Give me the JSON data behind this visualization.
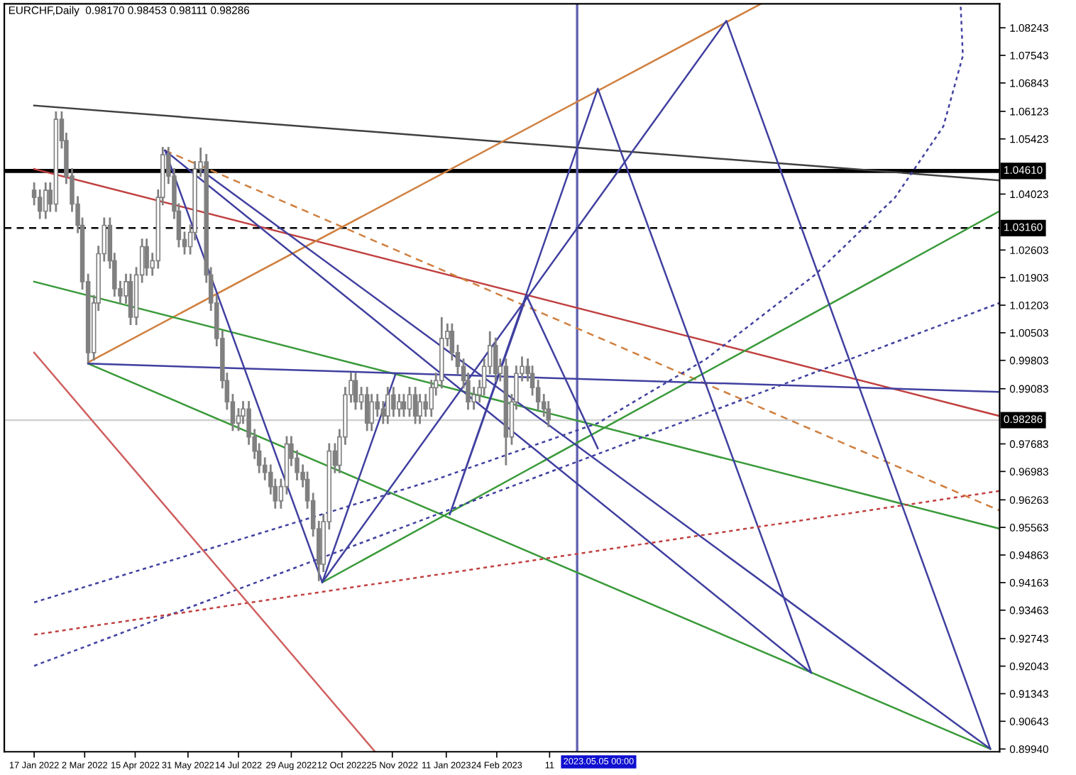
{
  "chart_data": {
    "type": "candlestick",
    "title": "EURCHF,Daily  0.98170 0.98453 0.98111 0.98286",
    "color": "#808080",
    "x": [
      "2022-01-17",
      "2022-01-22",
      "2022-01-27",
      "2022-01-31",
      "2022-02-05",
      "2022-02-10",
      "2022-02-14",
      "2022-02-19",
      "2022-02-24",
      "2022-02-28",
      "2022-03-05",
      "2022-03-10",
      "2022-03-14",
      "2022-03-19",
      "2022-03-24",
      "2022-03-28",
      "2022-04-02",
      "2022-04-07",
      "2022-04-11",
      "2022-04-16",
      "2022-04-21",
      "2022-04-25",
      "2022-04-30",
      "2022-05-05",
      "2022-05-09",
      "2022-05-14",
      "2022-05-19",
      "2022-05-23",
      "2022-05-28",
      "2022-06-02",
      "2022-06-06",
      "2022-06-11",
      "2022-06-16",
      "2022-06-20",
      "2022-06-25",
      "2022-06-30",
      "2022-07-04",
      "2022-07-09",
      "2022-07-14",
      "2022-07-18",
      "2022-07-23",
      "2022-07-28",
      "2022-08-01",
      "2022-08-06",
      "2022-08-11",
      "2022-08-15",
      "2022-08-20",
      "2022-08-25",
      "2022-08-29",
      "2022-09-03",
      "2022-09-08",
      "2022-09-12",
      "2022-09-17",
      "2022-09-22",
      "2022-09-26",
      "2022-10-01",
      "2022-10-06",
      "2022-10-10",
      "2022-10-15",
      "2022-10-20",
      "2022-10-24",
      "2022-10-29",
      "2022-11-03",
      "2022-11-07",
      "2022-11-12",
      "2022-11-17",
      "2022-11-21",
      "2022-11-26",
      "2022-12-01",
      "2022-12-05",
      "2022-12-10",
      "2022-12-15",
      "2022-12-19",
      "2022-12-24",
      "2022-12-29",
      "2023-01-02",
      "2023-01-07",
      "2023-01-12",
      "2023-01-16",
      "2023-01-21",
      "2023-01-26",
      "2023-01-30",
      "2023-02-04",
      "2023-02-09",
      "2023-02-13",
      "2023-02-18",
      "2023-02-23",
      "2023-02-27",
      "2023-03-04",
      "2023-03-09",
      "2023-03-13",
      "2023-03-18",
      "2023-03-23",
      "2023-03-27",
      "2023-04-01",
      "2023-04-06",
      "2023-04-10"
    ],
    "ohlc": [
      [
        1.0412,
        1.0432,
        1.0374,
        1.0394
      ],
      [
        1.0394,
        1.0414,
        1.0339,
        1.0359
      ],
      [
        1.0359,
        1.0432,
        1.0339,
        1.0412
      ],
      [
        1.0412,
        1.0432,
        1.0357,
        1.0377
      ],
      [
        1.0377,
        1.0612,
        1.0357,
        1.0592
      ],
      [
        1.0592,
        1.0612,
        1.0518,
        1.0538
      ],
      [
        1.0538,
        1.0558,
        1.0428,
        1.0448
      ],
      [
        1.0448,
        1.0468,
        1.0357,
        1.0377
      ],
      [
        1.0377,
        1.0397,
        1.0303,
        1.0323
      ],
      [
        1.0323,
        1.0343,
        1.016,
        1.018
      ],
      [
        1.018,
        1.02,
        0.9975,
        1.0
      ],
      [
        1.0,
        1.0146,
        0.998,
        1.0126
      ],
      [
        1.0126,
        1.0271,
        1.0106,
        1.0251
      ],
      [
        1.0251,
        1.0343,
        1.0231,
        1.0323
      ],
      [
        1.0323,
        1.0343,
        1.0213,
        1.0233
      ],
      [
        1.0233,
        1.0253,
        1.0142,
        1.0162
      ],
      [
        1.0162,
        1.0182,
        1.0124,
        1.0144
      ],
      [
        1.0144,
        1.02,
        1.0124,
        1.018
      ],
      [
        1.018,
        1.02,
        1.007,
        1.009
      ],
      [
        1.009,
        1.0217,
        1.007,
        1.0197
      ],
      [
        1.0197,
        1.0289,
        1.0177,
        1.0269
      ],
      [
        1.0269,
        1.0289,
        1.0195,
        1.0215
      ],
      [
        1.0215,
        1.0253,
        1.0195,
        1.0233
      ],
      [
        1.0233,
        1.0414,
        1.0213,
        1.0394
      ],
      [
        1.0394,
        1.0522,
        1.0374,
        1.0502
      ],
      [
        1.0502,
        1.0522,
        1.0428,
        1.0448
      ],
      [
        1.0448,
        1.0468,
        1.0339,
        1.0359
      ],
      [
        1.0359,
        1.0379,
        1.0267,
        1.0287
      ],
      [
        1.0287,
        1.0307,
        1.0249,
        1.0269
      ],
      [
        1.0269,
        1.0325,
        1.0249,
        1.0305
      ],
      [
        1.0305,
        1.0486,
        1.0285,
        1.0466
      ],
      [
        1.0466,
        1.052,
        1.0446,
        1.0484
      ],
      [
        1.0484,
        1.0504,
        1.0177,
        1.0197
      ],
      [
        1.0197,
        1.0217,
        1.0106,
        1.0126
      ],
      [
        1.0126,
        1.0146,
        1.0016,
        1.0036
      ],
      [
        1.0036,
        1.0056,
        0.9909,
        0.9929
      ],
      [
        0.9929,
        0.9949,
        0.9855,
        0.9875
      ],
      [
        0.9875,
        0.9895,
        0.9801,
        0.9821
      ],
      [
        0.9821,
        0.9859,
        0.9801,
        0.9839
      ],
      [
        0.9839,
        0.9877,
        0.9819,
        0.9857
      ],
      [
        0.9857,
        0.9877,
        0.9766,
        0.9786
      ],
      [
        0.9786,
        0.9806,
        0.973,
        0.975
      ],
      [
        0.975,
        0.977,
        0.9694,
        0.9714
      ],
      [
        0.9714,
        0.9734,
        0.9676,
        0.9696
      ],
      [
        0.9696,
        0.9716,
        0.964,
        0.966
      ],
      [
        0.966,
        0.968,
        0.9604,
        0.9624
      ],
      [
        0.9624,
        0.968,
        0.9604,
        0.966
      ],
      [
        0.966,
        0.9788,
        0.964,
        0.9768
      ],
      [
        0.9768,
        0.9788,
        0.9712,
        0.9732
      ],
      [
        0.9732,
        0.9752,
        0.9676,
        0.9696
      ],
      [
        0.9696,
        0.9716,
        0.9658,
        0.9678
      ],
      [
        0.9678,
        0.9698,
        0.9604,
        0.9624
      ],
      [
        0.9624,
        0.9644,
        0.9533,
        0.9553
      ],
      [
        0.9553,
        0.9573,
        0.942,
        0.9463
      ],
      [
        0.9463,
        0.9591,
        0.9443,
        0.9571
      ],
      [
        0.9571,
        0.977,
        0.9551,
        0.975
      ],
      [
        0.975,
        0.977,
        0.9694,
        0.9714
      ],
      [
        0.9714,
        0.9806,
        0.9694,
        0.9786
      ],
      [
        0.9786,
        0.9913,
        0.9766,
        0.9893
      ],
      [
        0.9893,
        0.9949,
        0.9873,
        0.9929
      ],
      [
        0.9929,
        0.9949,
        0.9855,
        0.9875
      ],
      [
        0.9875,
        0.9913,
        0.9855,
        0.9893
      ],
      [
        0.9893,
        0.9913,
        0.9801,
        0.9821
      ],
      [
        0.9821,
        0.9895,
        0.9801,
        0.9875
      ],
      [
        0.9875,
        0.9895,
        0.9837,
        0.9857
      ],
      [
        0.9857,
        0.9877,
        0.9819,
        0.9839
      ],
      [
        0.9839,
        0.9913,
        0.9819,
        0.9893
      ],
      [
        0.9893,
        0.9913,
        0.9837,
        0.9857
      ],
      [
        0.9857,
        0.9895,
        0.9837,
        0.9875
      ],
      [
        0.9875,
        0.9895,
        0.9837,
        0.9857
      ],
      [
        0.9857,
        0.9913,
        0.9837,
        0.9893
      ],
      [
        0.9893,
        0.9913,
        0.9819,
        0.9839
      ],
      [
        0.9839,
        0.9895,
        0.9819,
        0.9875
      ],
      [
        0.9875,
        0.9895,
        0.9837,
        0.9857
      ],
      [
        0.9857,
        0.9931,
        0.9837,
        0.9911
      ],
      [
        0.9911,
        0.9949,
        0.9891,
        0.9929
      ],
      [
        0.9929,
        1.009,
        0.9909,
        1.0036
      ],
      [
        1.0036,
        1.0074,
        1.0016,
        1.0054
      ],
      [
        1.0054,
        1.0074,
        0.998,
        1.0
      ],
      [
        1.0,
        1.002,
        0.9945,
        0.9965
      ],
      [
        0.9965,
        0.9985,
        0.9909,
        0.9929
      ],
      [
        0.9929,
        0.9949,
        0.9855,
        0.9875
      ],
      [
        0.9875,
        0.9913,
        0.9855,
        0.9893
      ],
      [
        0.9893,
        0.9931,
        0.9873,
        0.9911
      ],
      [
        0.9911,
        0.9985,
        0.9891,
        0.9965
      ],
      [
        0.9965,
        1.0054,
        0.9945,
        1.0018
      ],
      [
        1.0018,
        1.0038,
        0.9927,
        0.9947
      ],
      [
        0.9947,
        0.9985,
        0.9927,
        0.9965
      ],
      [
        0.9965,
        0.9985,
        0.9714,
        0.9786
      ],
      [
        0.9786,
        0.9895,
        0.9766,
        0.9875
      ],
      [
        0.9875,
        0.9967,
        0.9855,
        0.9947
      ],
      [
        0.9947,
        0.999,
        0.9927,
        0.9965
      ],
      [
        0.9965,
        0.9985,
        0.9927,
        0.9947
      ],
      [
        0.9947,
        0.9967,
        0.9891,
        0.9911
      ],
      [
        0.9911,
        0.9931,
        0.9855,
        0.9875
      ],
      [
        0.9875,
        0.9895,
        0.9837,
        0.9857
      ],
      [
        0.9857,
        0.9877,
        0.9811,
        0.9829
      ]
    ],
    "series": [
      {
        "type": "line",
        "color": "#404040",
        "line_style": "solid",
        "x": [
          "2022-01-17",
          "2024-05-07"
        ],
        "values": [
          1.0627,
          1.0437
        ]
      },
      {
        "type": "line",
        "color": "#c04040",
        "line_style": "solid",
        "x": [
          "2022-01-17",
          "2024-05-07"
        ],
        "values": [
          1.0466,
          0.9839
        ]
      },
      {
        "type": "line",
        "color": "#d08040",
        "line_style": "solid",
        "x": [
          "2022-03-05",
          "2023-10-12"
        ],
        "values": [
          0.9975,
          1.0885
        ]
      },
      {
        "type": "line",
        "color": "#d08040",
        "line_style": "dashed",
        "x": [
          "2022-05-11",
          "2024-05-07"
        ],
        "values": [
          1.0513,
          0.9599
        ]
      },
      {
        "type": "line",
        "color": "#3a9a3a",
        "line_style": "solid",
        "x": [
          "2022-01-17",
          "2024-05-07"
        ],
        "values": [
          1.018,
          0.9553
        ]
      },
      {
        "type": "line",
        "color": "#3a9a3a",
        "line_style": "solid",
        "x": [
          "2022-03-05",
          "2024-04-29"
        ],
        "values": [
          0.9972,
          0.8994
        ]
      },
      {
        "type": "line",
        "color": "#3a9a3a",
        "line_style": "solid",
        "x": [
          "2022-09-25",
          "2024-05-07"
        ],
        "values": [
          0.9417,
          1.0359
        ]
      },
      {
        "type": "line",
        "color": "#4040a0",
        "line_style": "solid",
        "x": [
          "2022-03-05",
          "2024-05-07"
        ],
        "values": [
          0.9972,
          0.99
        ]
      },
      {
        "type": "line",
        "color": "#4040a0",
        "line_style": "solid",
        "x": [
          "2022-05-11",
          "2022-09-25",
          "2023-09-12",
          "2024-04-29",
          "2022-06-10"
        ],
        "values": [
          1.0513,
          0.9417,
          1.0842,
          0.8994,
          1.0466
        ]
      },
      {
        "type": "line",
        "color": "#4040a0",
        "line_style": "solid",
        "x": [
          "2022-05-11",
          "2023-11-25",
          "2023-05-23",
          "2023-01-14",
          "2023-03-22",
          "2023-05-23"
        ],
        "values": [
          1.0513,
          0.9187,
          1.067,
          0.9589,
          1.0144,
          0.9757
        ]
      },
      {
        "type": "line",
        "color": "#4040a0",
        "line_style": "solid",
        "x": [
          "2022-09-25",
          "2022-11-28"
        ],
        "values": [
          0.9417,
          0.9947
        ]
      },
      {
        "type": "line",
        "color": "#4040a0",
        "line_style": "dotted",
        "x": [
          "2022-01-17",
          "2023-01-02",
          "2023-05-23",
          "2023-08-25",
          "2023-11-28",
          "2024-02-06",
          "2024-03-19",
          "2024-04-05",
          "2024-04-03"
        ],
        "values": [
          0.9366,
          0.9678,
          0.9821,
          0.9983,
          1.0197,
          1.0394,
          1.0574,
          1.0753,
          1.0885
        ]
      },
      {
        "type": "line",
        "color": "#4040a0",
        "line_style": "dotted",
        "x": [
          "2022-01-17",
          "2024-05-07"
        ],
        "values": [
          0.9205,
          1.0126
        ]
      },
      {
        "type": "line",
        "color": "#c04040",
        "line_style": "dotted",
        "x": [
          "2022-01-17",
          "2024-05-07"
        ],
        "values": [
          0.9284,
          0.9649
        ]
      },
      {
        "type": "line",
        "color": "#d06060",
        "line_style": "solid",
        "x": [
          "2022-01-17",
          "2022-11-10"
        ],
        "values": [
          1.0,
          0.8987
        ]
      }
    ],
    "ref_lines": [
      {
        "axis": "y",
        "value": 1.0461,
        "label": "1.04610",
        "color": "#000000",
        "line_style": "solid"
      },
      {
        "axis": "y",
        "value": 1.0316,
        "label": "1.03160",
        "color": "#000000",
        "line_style": "dashed"
      },
      {
        "axis": "y",
        "value": 0.98286,
        "label": "0.98286",
        "color": "#d0d0d0",
        "line_style": "solid"
      },
      {
        "axis": "x",
        "value": "2023-05-05",
        "label": "2023.05.05 00:00",
        "color": "#6060b0",
        "line_style": "solid"
      }
    ],
    "xlim": [
      "2021-12-22",
      "2024-05-07"
    ],
    "ylim": [
      0.8987,
      1.0885
    ],
    "xticks": [
      {
        "value": "2022-01-17",
        "label": "17 Jan 2022"
      },
      {
        "value": "2022-03-02",
        "label": "2 Mar 2022"
      },
      {
        "value": "2022-04-15",
        "label": "15 Apr 2022"
      },
      {
        "value": "2022-05-31",
        "label": "31 May 2022"
      },
      {
        "value": "2022-07-14",
        "label": "14 Jul 2022"
      },
      {
        "value": "2022-08-29",
        "label": "29 Aug 2022"
      },
      {
        "value": "2022-10-12",
        "label": "12 Oct 2022"
      },
      {
        "value": "2022-11-25",
        "label": "25 Nov 2022"
      },
      {
        "value": "2023-01-11",
        "label": "11 Jan 2023"
      },
      {
        "value": "2023-02-24",
        "label": "24 Feb 2023"
      },
      {
        "value": "2023-04-11",
        "label": "11"
      }
    ],
    "yticks": [
      1.08243,
      1.07543,
      1.06843,
      1.06123,
      1.05423,
      1.04023,
      1.02603,
      1.01903,
      1.01203,
      1.00503,
      0.99803,
      0.99083,
      0.97683,
      0.96983,
      0.96263,
      0.95563,
      0.94863,
      0.94163,
      0.93463,
      0.92743,
      0.92043,
      0.91343,
      0.90643,
      {
        "value": 0.8994,
        "label": "0.89940"
      }
    ],
    "grid": false,
    "legend": false
  }
}
